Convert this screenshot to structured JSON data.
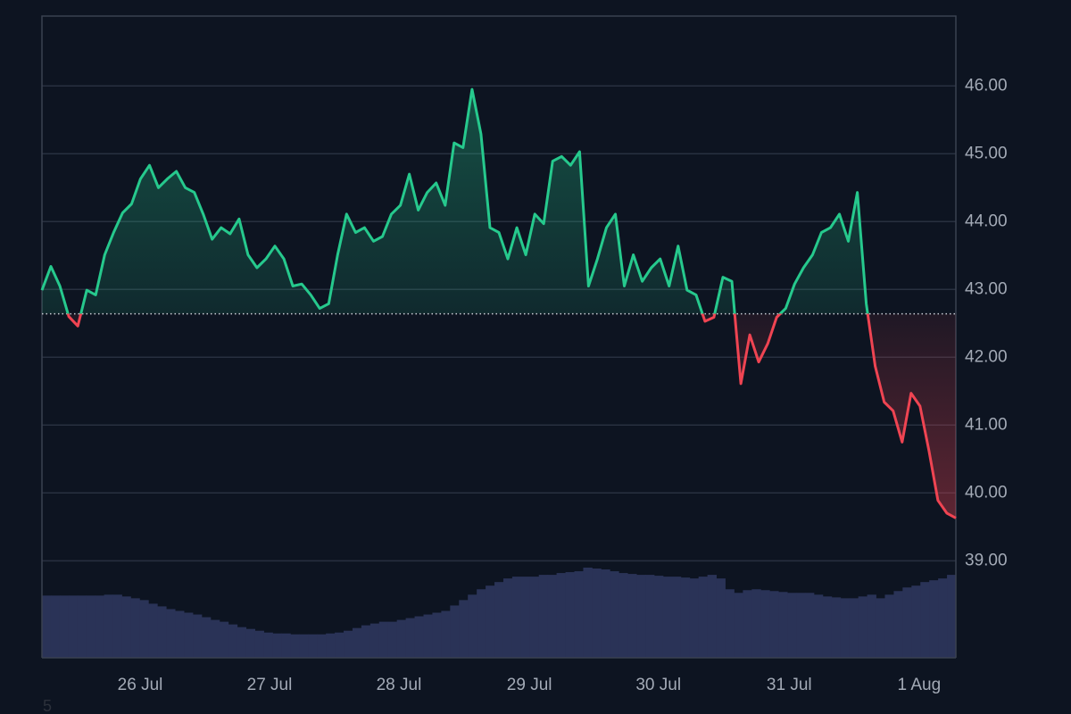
{
  "chart_data": {
    "type": "line",
    "series": [
      {
        "values": [
          42.99,
          43.34,
          43.05,
          42.6,
          42.46,
          42.99,
          42.92,
          43.51,
          43.84,
          44.13,
          44.26,
          44.63,
          44.83,
          44.5,
          44.63,
          44.74,
          44.5,
          44.43,
          44.11,
          43.74,
          43.91,
          43.82,
          44.04,
          43.51,
          43.32,
          43.45,
          43.64,
          43.45,
          43.05,
          43.08,
          42.92,
          42.72,
          42.79,
          43.51,
          44.11,
          43.84,
          43.91,
          43.71,
          43.78,
          44.11,
          44.24,
          44.7,
          44.17,
          44.43,
          44.57,
          44.24,
          45.16,
          45.09,
          45.95,
          45.29,
          43.91,
          43.84,
          43.45,
          43.91,
          43.51,
          44.11,
          43.97,
          44.89,
          44.96,
          44.83,
          45.03,
          43.05,
          43.45,
          43.91,
          44.11,
          43.05,
          43.51,
          43.12,
          43.32,
          43.45,
          43.05,
          43.64,
          42.99,
          42.92,
          42.53,
          42.59,
          43.18,
          43.12,
          41.61,
          42.33,
          41.93,
          42.2,
          42.59,
          42.72,
          43.08,
          43.32,
          43.51,
          43.84,
          43.91,
          44.11,
          43.71,
          44.43,
          42.79,
          41.87,
          41.34,
          41.21,
          40.75,
          41.47,
          41.28,
          40.62,
          39.89,
          39.7,
          39.63
        ],
        "up_color": "#26c98d",
        "down_color": "#ef4452"
      }
    ],
    "baseline": 42.64,
    "volume": {
      "values": [
        69,
        69,
        69,
        69,
        69,
        69,
        69,
        70,
        70,
        68,
        66,
        64,
        60,
        57,
        54,
        52,
        50,
        48,
        45,
        42,
        40,
        37,
        34,
        32,
        30,
        28,
        27,
        27,
        26,
        26,
        26,
        26,
        27,
        28,
        30,
        33,
        36,
        38,
        40,
        40,
        42,
        44,
        46,
        48,
        50,
        52,
        58,
        64,
        70,
        76,
        80,
        84,
        88,
        90,
        90,
        90,
        92,
        92,
        94,
        95,
        96,
        100,
        99,
        98,
        96,
        94,
        93,
        92,
        92,
        91,
        90,
        90,
        89,
        88,
        90,
        92,
        88,
        76,
        72,
        75,
        76,
        75,
        74,
        73,
        72,
        72,
        72,
        70,
        68,
        67,
        66,
        66,
        68,
        70,
        66,
        70,
        74,
        78,
        80,
        84,
        86,
        88,
        92
      ],
      "color": "#2a3357"
    },
    "ylim": [
      37.57,
      47.03
    ],
    "yticks": [
      {
        "value": 39,
        "label": "39.00"
      },
      {
        "value": 40,
        "label": "40.00"
      },
      {
        "value": 41,
        "label": "41.00"
      },
      {
        "value": 42,
        "label": "42.00"
      },
      {
        "value": 43,
        "label": "43.00"
      },
      {
        "value": 44,
        "label": "44.00"
      },
      {
        "value": 45,
        "label": "45.00"
      },
      {
        "value": 46,
        "label": "46.00"
      }
    ],
    "xticks": [
      {
        "value": 10.96,
        "label": "26 Jul"
      },
      {
        "value": 25.4,
        "label": "27 Jul"
      },
      {
        "value": 39.84,
        "label": "28 Jul"
      },
      {
        "value": 54.4,
        "label": "29 Jul"
      },
      {
        "value": 68.8,
        "label": "30 Jul"
      },
      {
        "value": 83.4,
        "label": "31 Jul"
      },
      {
        "value": 97.9,
        "label": "1 Aug"
      }
    ],
    "grid": true,
    "footnote": "5"
  }
}
